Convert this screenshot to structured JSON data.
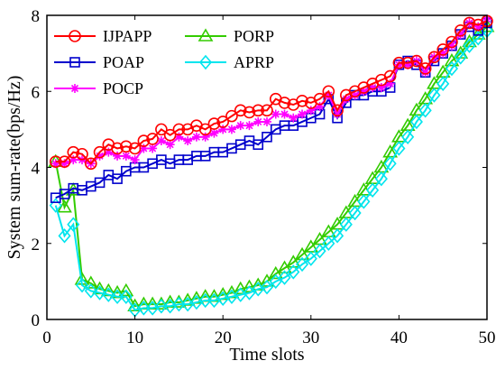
{
  "chart_data": {
    "type": "line",
    "title": "",
    "xlabel": "Time slots",
    "ylabel": "System sum-rate(bps/Hz)",
    "xlim": [
      0,
      50
    ],
    "ylim": [
      0,
      8
    ],
    "x_ticks": [
      "0",
      "10",
      "20",
      "30",
      "40",
      "50"
    ],
    "y_ticks": [
      "0",
      "2",
      "4",
      "6",
      "8"
    ],
    "x_tick_values": [
      0,
      10,
      20,
      30,
      40,
      50
    ],
    "y_tick_values": [
      0,
      2,
      4,
      6,
      8
    ],
    "grid": false,
    "legend_position": "top-left",
    "x": [
      1,
      2,
      3,
      4,
      5,
      6,
      7,
      8,
      9,
      10,
      11,
      12,
      13,
      14,
      15,
      16,
      17,
      18,
      19,
      20,
      21,
      22,
      23,
      24,
      25,
      26,
      27,
      28,
      29,
      30,
      31,
      32,
      33,
      34,
      35,
      36,
      37,
      38,
      39,
      40,
      41,
      42,
      43,
      44,
      45,
      46,
      47,
      48,
      49,
      50
    ],
    "series": [
      {
        "name": "IJPAPP",
        "color": "#ff0000",
        "marker": "circle",
        "values": [
          4.15,
          4.15,
          4.4,
          4.35,
          4.1,
          4.4,
          4.6,
          4.5,
          4.55,
          4.5,
          4.7,
          4.75,
          5.0,
          4.85,
          5.0,
          5.0,
          5.1,
          5.0,
          5.15,
          5.2,
          5.35,
          5.5,
          5.45,
          5.5,
          5.5,
          5.8,
          5.7,
          5.65,
          5.75,
          5.7,
          5.8,
          6.0,
          5.5,
          5.9,
          6.0,
          6.1,
          6.2,
          6.3,
          6.4,
          6.75,
          6.75,
          6.8,
          6.6,
          6.9,
          7.1,
          7.3,
          7.6,
          7.8,
          7.75,
          7.85
        ]
      },
      {
        "name": "POAP",
        "color": "#0000cc",
        "marker": "square",
        "values": [
          3.2,
          3.3,
          3.45,
          3.4,
          3.5,
          3.6,
          3.8,
          3.7,
          3.9,
          4.0,
          4.0,
          4.1,
          4.2,
          4.1,
          4.2,
          4.2,
          4.3,
          4.3,
          4.4,
          4.4,
          4.5,
          4.6,
          4.7,
          4.6,
          4.8,
          5.0,
          5.1,
          5.1,
          5.2,
          5.3,
          5.4,
          5.8,
          5.3,
          5.7,
          5.9,
          5.9,
          6.0,
          6.0,
          6.1,
          6.7,
          6.8,
          6.7,
          6.5,
          6.8,
          7.0,
          7.2,
          7.5,
          7.7,
          7.6,
          7.8
        ]
      },
      {
        "name": "POCP",
        "color": "#ff00ff",
        "marker": "asterisk",
        "values": [
          4.1,
          4.1,
          4.2,
          4.2,
          4.1,
          4.3,
          4.4,
          4.3,
          4.3,
          4.2,
          4.5,
          4.5,
          4.7,
          4.6,
          4.8,
          4.7,
          4.8,
          4.8,
          4.9,
          5.0,
          5.0,
          5.1,
          5.1,
          5.2,
          5.2,
          5.4,
          5.4,
          5.3,
          5.4,
          5.5,
          5.6,
          5.9,
          5.4,
          5.8,
          5.9,
          6.0,
          6.1,
          6.1,
          6.2,
          6.7,
          6.7,
          6.8,
          6.5,
          6.9,
          7.0,
          7.2,
          7.5,
          7.8,
          7.7,
          7.9
        ]
      },
      {
        "name": "PORP",
        "color": "#33cc00",
        "marker": "triangle",
        "values": [
          4.15,
          2.95,
          3.4,
          1.05,
          0.95,
          0.8,
          0.75,
          0.7,
          0.75,
          0.35,
          0.4,
          0.4,
          0.4,
          0.45,
          0.45,
          0.5,
          0.55,
          0.6,
          0.6,
          0.65,
          0.7,
          0.8,
          0.85,
          0.9,
          1.0,
          1.2,
          1.35,
          1.5,
          1.7,
          1.9,
          2.1,
          2.3,
          2.5,
          2.8,
          3.1,
          3.4,
          3.7,
          4.0,
          4.4,
          4.8,
          5.1,
          5.5,
          5.8,
          6.2,
          6.5,
          6.8,
          7.0,
          7.3,
          7.5,
          7.7
        ]
      },
      {
        "name": "APRP",
        "color": "#00e5ee",
        "marker": "diamond",
        "values": [
          3.0,
          2.2,
          2.5,
          0.9,
          0.75,
          0.7,
          0.65,
          0.6,
          0.6,
          0.25,
          0.3,
          0.3,
          0.35,
          0.35,
          0.4,
          0.4,
          0.45,
          0.5,
          0.5,
          0.55,
          0.6,
          0.65,
          0.7,
          0.8,
          0.85,
          1.0,
          1.1,
          1.25,
          1.45,
          1.6,
          1.8,
          2.0,
          2.2,
          2.5,
          2.8,
          3.1,
          3.4,
          3.7,
          4.1,
          4.5,
          4.8,
          5.2,
          5.5,
          5.9,
          6.2,
          6.6,
          6.9,
          7.2,
          7.4,
          7.6
        ]
      }
    ]
  }
}
